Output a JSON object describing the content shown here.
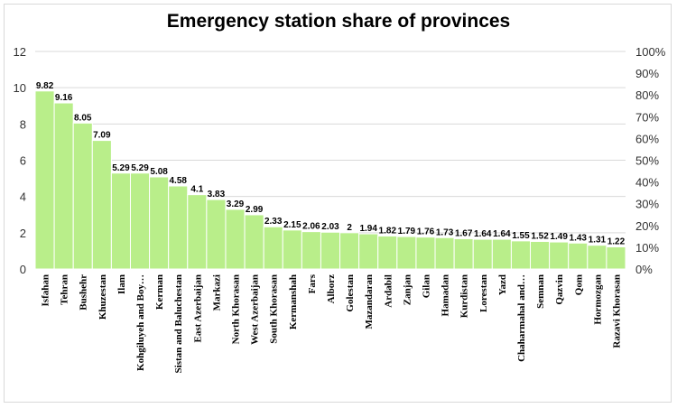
{
  "chart_data": {
    "type": "bar",
    "title": "Emergency station share of provinces",
    "xlabel": "",
    "ylabel": "",
    "ylim": [
      0,
      12
    ],
    "yticks": [
      "0",
      "2",
      "4",
      "6",
      "8",
      "10",
      "12"
    ],
    "y2lim": [
      0,
      100
    ],
    "y2ticks": [
      "0%",
      "10%",
      "20%",
      "30%",
      "40%",
      "50%",
      "60%",
      "70%",
      "80%",
      "90%",
      "100%"
    ],
    "bar_color": "#b9ee8a",
    "bar_edge_color": "#ffffff",
    "grid_color": "#d9d9d9",
    "categories": [
      "Isfahan",
      "Tehran",
      "Bushehr",
      "Khuzestan",
      "Ilam",
      "Kohgiluyeh and Boy…",
      "Kerman",
      "Sistan and Baluchestan",
      "East Azerbaijan",
      "Markazi",
      "North Khorasan",
      "West Azerbaijan",
      "South Khorasan",
      "Kermanshah",
      "Fars",
      "Alborz",
      "Golestan",
      "Mazandaran",
      "Ardabil",
      "Zanjan",
      "Gilan",
      "Hamadan",
      "Kurdistan",
      "Lorestan",
      "Yazd",
      "Chaharmahal and…",
      "Semnan",
      "Qazvin",
      "Qom",
      "Hormozgan",
      "Razavi Khorasan"
    ],
    "values": [
      9.82,
      9.16,
      8.05,
      7.09,
      5.29,
      5.29,
      5.08,
      4.58,
      4.1,
      3.83,
      3.29,
      2.99,
      2.33,
      2.15,
      2.06,
      2.03,
      2,
      1.94,
      1.82,
      1.79,
      1.76,
      1.73,
      1.67,
      1.64,
      1.64,
      1.55,
      1.52,
      1.49,
      1.43,
      1.31,
      1.22
    ],
    "labels": [
      "9.82",
      "9.16",
      "8.05",
      "7.09",
      "5.29",
      "5.29",
      "5.08",
      "4.58",
      "4.1",
      "3.83",
      "3.29",
      "2.99",
      "2.33",
      "2.15",
      "2.06",
      "2.03",
      "2",
      "1.94",
      "1.82",
      "1.79",
      "1.76",
      "1.73",
      "1.67",
      "1.64",
      "1.64",
      "1.55",
      "1.52",
      "1.49",
      "1.43",
      "1.31",
      "1.22"
    ]
  }
}
